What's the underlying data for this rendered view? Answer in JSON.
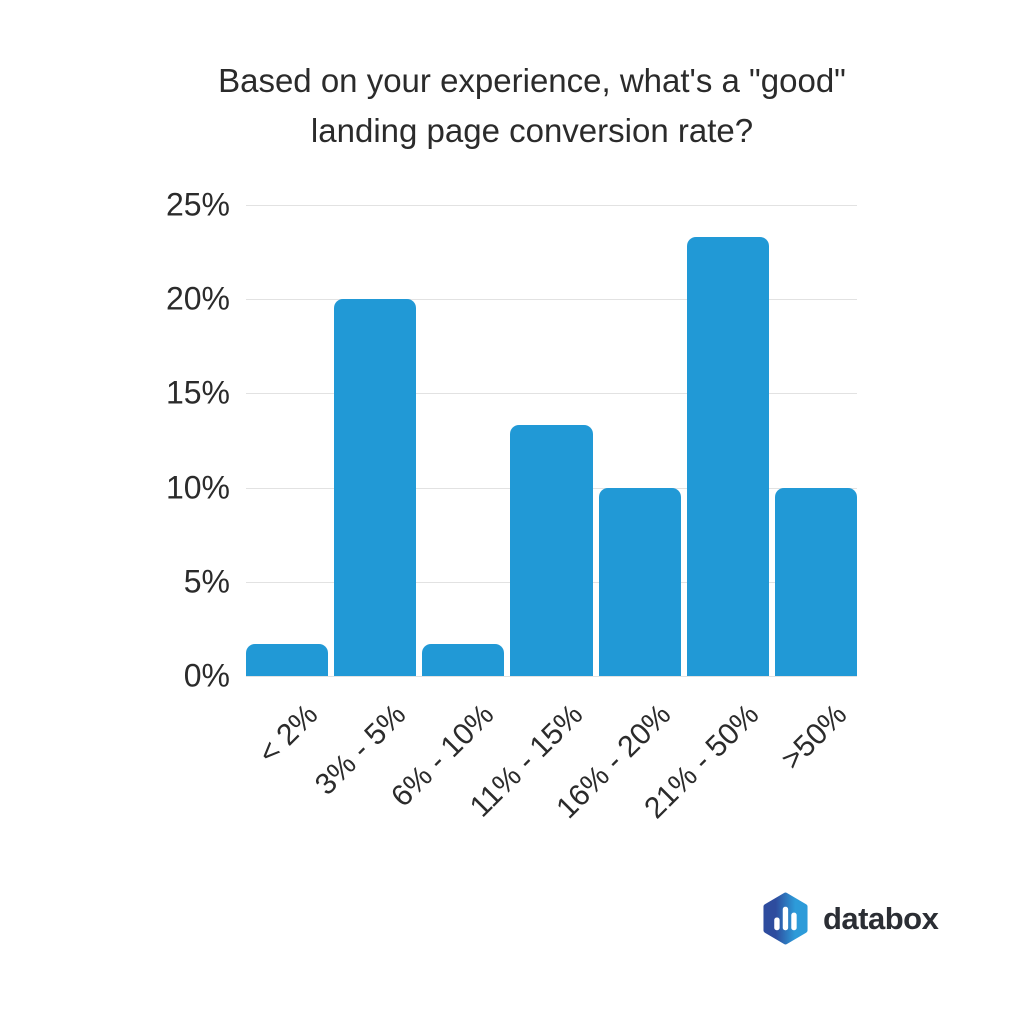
{
  "chart_data": {
    "type": "bar",
    "title": "Based on your experience, what's a \"good\" landing page conversion rate?",
    "title_lines": [
      "Based on your experience, what's a \"good\"",
      "landing page conversion rate?"
    ],
    "categories": [
      "< 2%",
      "3% - 5%",
      "6% - 10%",
      "11% - 15%",
      "16% - 20%",
      "21% - 50%",
      ">50%"
    ],
    "values": [
      1.7,
      20,
      1.7,
      13.3,
      10,
      23.3,
      10
    ],
    "xlabel": "",
    "ylabel": "",
    "y_ticks": [
      "0%",
      "5%",
      "10%",
      "15%",
      "20%",
      "25%"
    ],
    "y_tick_values": [
      0,
      5,
      10,
      15,
      20,
      25
    ],
    "ylim": [
      0,
      25
    ],
    "grid": true,
    "legend": false,
    "bar_color": "#2199d6",
    "gridline_color": "#e2e2e2",
    "text_color": "#2b2b2b",
    "x_label_rotation_deg": -45
  },
  "logo": {
    "text": "databox",
    "icon": "bar-chart-hexagon",
    "hexagon_color_left": "#2e4c9e",
    "hexagon_color_right": "#2d9bd9",
    "icon_bar_color": "#ffffff",
    "text_color": "#2b2e34"
  }
}
